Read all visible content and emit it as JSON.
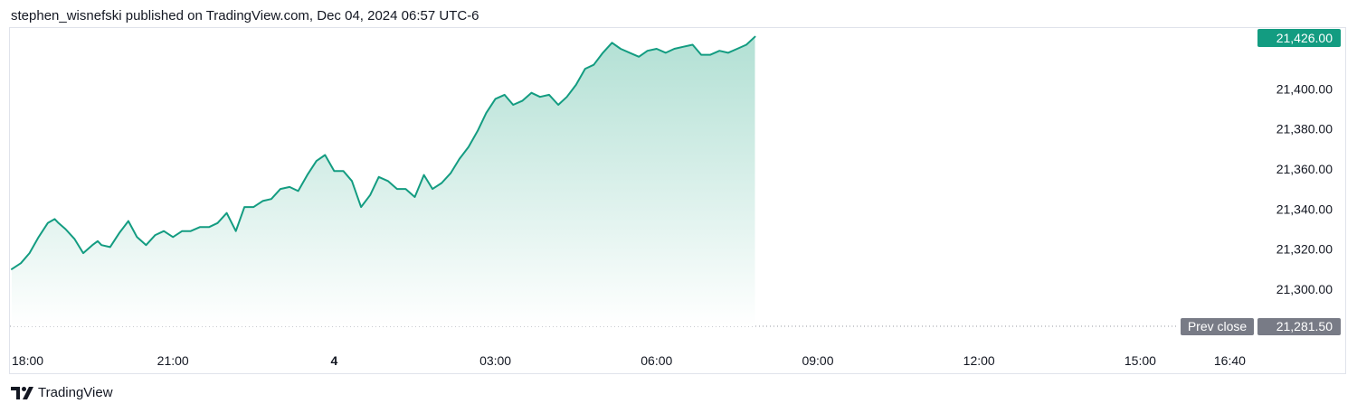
{
  "header": {
    "author": "stephen_wisnefski",
    "text": "stephen_wisnefski published on TradingView.com, Dec 04, 2024 06:57 UTC-6"
  },
  "footer": {
    "brand": "TradingView"
  },
  "colors": {
    "line": "#139c81",
    "fill_top": "#b2e0d4",
    "fill_bottom": "#ffffff",
    "last_price_badge": "#139c81",
    "prev_close_badge": "#787b86",
    "prev_close_line": "#9598a1",
    "axis_text": "#131722"
  },
  "chart_data": {
    "type": "area",
    "title": "",
    "xlabel": "",
    "ylabel": "",
    "grid": false,
    "ylim": [
      21281.5,
      21429
    ],
    "y_ticks": [
      "21,300.00",
      "21,320.00",
      "21,340.00",
      "21,360.00",
      "21,380.00",
      "21,400.00"
    ],
    "x_ticks": [
      {
        "label": "18:00",
        "hours": 0,
        "bold": false
      },
      {
        "label": "21:00",
        "hours": 3,
        "bold": false
      },
      {
        "label": "4",
        "hours": 6,
        "bold": true
      },
      {
        "label": "03:00",
        "hours": 9,
        "bold": false
      },
      {
        "label": "06:00",
        "hours": 12,
        "bold": false
      },
      {
        "label": "09:00",
        "hours": 15,
        "bold": false
      },
      {
        "label": "12:00",
        "hours": 18,
        "bold": false
      },
      {
        "label": "15:00",
        "hours": 21,
        "bold": false
      },
      {
        "label": "16:40",
        "hours": 22.6667,
        "bold": false
      }
    ],
    "series": [
      {
        "x_hours": [
          0,
          0.17,
          0.33,
          0.5,
          0.67,
          0.8,
          0.87,
          1.0,
          1.17,
          1.33,
          1.5,
          1.6,
          1.67,
          1.83,
          2.0,
          2.17,
          2.33,
          2.5,
          2.67,
          2.83,
          3.0,
          3.17,
          3.33,
          3.5,
          3.67,
          3.83,
          4.0,
          4.17,
          4.33,
          4.5,
          4.67,
          4.83,
          5.0,
          5.17,
          5.33,
          5.5,
          5.67,
          5.83,
          6.0,
          6.17,
          6.33,
          6.5,
          6.67,
          6.83,
          7.0,
          7.17,
          7.33,
          7.5,
          7.67,
          7.83,
          8.0,
          8.17,
          8.33,
          8.5,
          8.67,
          8.83,
          9.0,
          9.17,
          9.33,
          9.5,
          9.67,
          9.83,
          10.0,
          10.17,
          10.33,
          10.5,
          10.67,
          10.83,
          11.0,
          11.17,
          11.33,
          11.5,
          11.67,
          11.83,
          12.0,
          12.17,
          12.33,
          12.5,
          12.67,
          12.83,
          13.0,
          13.17,
          13.33,
          13.5,
          13.67,
          13.83
        ],
        "values": [
          21310,
          21313,
          21318,
          21326,
          21333,
          21335,
          21333,
          21330,
          21325,
          21318,
          21322,
          21324,
          21322,
          21321,
          21328,
          21334,
          21326,
          21322,
          21327,
          21329,
          21326,
          21329,
          21329,
          21331,
          21331,
          21333,
          21338,
          21329,
          21341,
          21341,
          21344,
          21345,
          21350,
          21351,
          21349,
          21357,
          21364,
          21367,
          21359,
          21359,
          21354,
          21341,
          21347,
          21356,
          21354,
          21350,
          21350,
          21346,
          21357,
          21350,
          21353,
          21358,
          21365,
          21371,
          21379,
          21388,
          21395,
          21397,
          21392,
          21394,
          21398,
          21396,
          21397,
          21392,
          21396,
          21402,
          21410,
          21412,
          21418,
          21423,
          21420,
          21418,
          21416,
          21419,
          21420,
          21418,
          21420,
          21421,
          21422,
          21417,
          21417,
          21419,
          21418,
          21420,
          21422,
          21426
        ]
      }
    ],
    "last_price": {
      "value": 21426.0,
      "label": "21,426.00"
    },
    "prev_close": {
      "label": "Prev close",
      "value": 21281.5,
      "value_label": "21,281.50"
    }
  }
}
